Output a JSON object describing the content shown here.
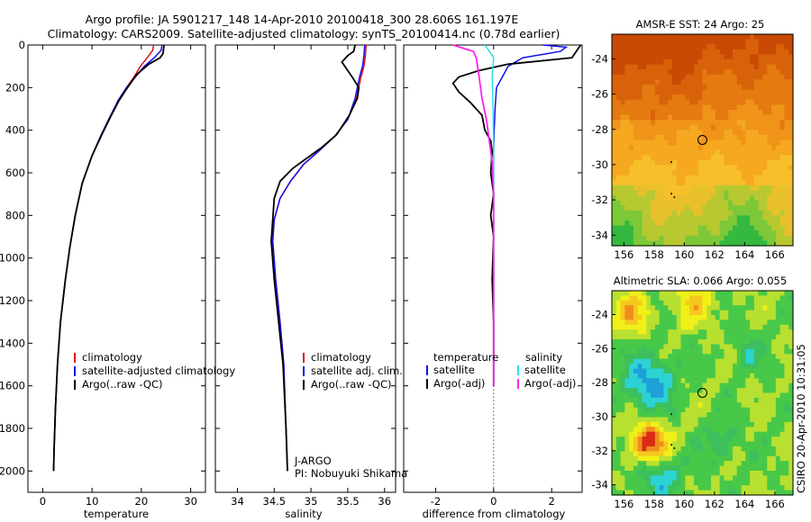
{
  "header": {
    "line1": "Argo profile: JA 5901217_148 14-Apr-2010 20100418_300 28.606S 161.197E",
    "line2": "Climatology: CARS2009. Satellite-adjusted climatology: synTS_20100414.nc (0.78d earlier)"
  },
  "side_label": "CSIRO 20-Apr-2010 10:31:05",
  "footer": {
    "agency": "J-ARGO",
    "pi": "PI: Nobuyuki Shikama"
  },
  "colors": {
    "climatology": "#dd1010",
    "satellite": "#1010ee",
    "argo": "#000000",
    "argo_salinity_diff": "#ff22ee",
    "satellite_salinity_diff": "#22e6e6"
  },
  "chart_data": [
    {
      "type": "line",
      "panel": "temperature",
      "xlabel": "temperature",
      "ylabel": "",
      "xlim": [
        -3,
        33
      ],
      "ylim": [
        2100,
        0
      ],
      "y_inverted": true,
      "xticks": [
        "0",
        "10",
        "20",
        "30"
      ],
      "yticks": [
        "0",
        "200",
        "400",
        "600",
        "800",
        "1000",
        "1200",
        "1400",
        "1600",
        "1800",
        "2000"
      ],
      "legend": [
        "climatology",
        "satellite-adjusted climatology",
        "Argo(..raw -QC)"
      ],
      "legend_position": "lower-right",
      "series": [
        {
          "name": "climatology",
          "x": [
            22.5,
            22.3,
            21.2,
            19.8,
            18.5,
            17.0,
            15.4,
            13.8,
            11.9,
            10.0,
            8.0,
            6.6,
            5.5,
            4.6,
            3.6,
            3.0,
            2.6,
            2.3,
            2.2
          ],
          "y": [
            0,
            25,
            60,
            100,
            150,
            200,
            260,
            330,
            420,
            520,
            650,
            800,
            950,
            1100,
            1300,
            1500,
            1700,
            1900,
            2000
          ]
        },
        {
          "name": "satellite-adjusted climatology",
          "x": [
            24.2,
            24.0,
            22.6,
            20.6,
            18.8,
            17.0,
            15.3,
            13.8,
            11.9,
            10.0,
            8.0,
            6.6,
            5.5,
            4.6,
            3.6,
            3.0,
            2.6,
            2.3,
            2.2
          ],
          "y": [
            0,
            25,
            60,
            100,
            150,
            200,
            260,
            330,
            420,
            520,
            650,
            800,
            950,
            1100,
            1300,
            1500,
            1700,
            1900,
            2000
          ]
        },
        {
          "name": "Argo(..raw -QC)",
          "x": [
            24.6,
            24.5,
            24.4,
            23.8,
            21.5,
            19.0,
            17.2,
            15.5,
            13.9,
            12.0,
            10.0,
            8.0,
            6.6,
            5.5,
            4.6,
            3.6,
            3.0,
            2.6,
            2.3,
            2.2
          ],
          "y": [
            0,
            20,
            40,
            60,
            90,
            140,
            200,
            260,
            330,
            420,
            520,
            650,
            800,
            950,
            1100,
            1300,
            1500,
            1700,
            1900,
            2000
          ]
        }
      ]
    },
    {
      "type": "line",
      "panel": "salinity",
      "xlabel": "salinity",
      "ylabel": "",
      "xlim": [
        33.7,
        36.15
      ],
      "ylim": [
        2100,
        0
      ],
      "y_inverted": true,
      "xticks": [
        "34",
        "34.5",
        "35",
        "35.5",
        "36"
      ],
      "legend": [
        "climatology",
        "satellite adj. clim.",
        "Argo(..raw -QC)"
      ],
      "legend_position": "lower-right",
      "series": [
        {
          "name": "climatology",
          "x": [
            35.75,
            35.74,
            35.72,
            35.68,
            35.62,
            35.5,
            35.32,
            35.1,
            34.9,
            34.72,
            34.58,
            34.5,
            34.48,
            34.52,
            34.58,
            34.63,
            34.66,
            34.68
          ],
          "y": [
            0,
            50,
            100,
            150,
            250,
            350,
            430,
            500,
            560,
            640,
            720,
            820,
            920,
            1100,
            1300,
            1500,
            1800,
            2000
          ]
        },
        {
          "name": "satellite adj. clim.",
          "x": [
            35.73,
            35.72,
            35.7,
            35.66,
            35.6,
            35.5,
            35.32,
            35.1,
            34.9,
            34.72,
            34.58,
            34.5,
            34.48,
            34.52,
            34.58,
            34.63,
            34.66,
            34.68
          ],
          "y": [
            0,
            50,
            100,
            150,
            250,
            350,
            430,
            500,
            560,
            640,
            720,
            820,
            920,
            1100,
            1300,
            1500,
            1800,
            2000
          ]
        },
        {
          "name": "Argo(..raw -QC)",
          "x": [
            35.6,
            35.58,
            35.5,
            35.42,
            35.5,
            35.56,
            35.65,
            35.63,
            35.52,
            35.35,
            35.15,
            34.95,
            34.75,
            34.58,
            34.5,
            34.48,
            34.46,
            34.5,
            34.56,
            34.62,
            34.66,
            34.68
          ],
          "y": [
            0,
            30,
            50,
            80,
            120,
            150,
            200,
            250,
            330,
            420,
            480,
            530,
            580,
            640,
            720,
            820,
            920,
            1100,
            1300,
            1500,
            1800,
            2000
          ]
        }
      ]
    },
    {
      "type": "line",
      "panel": "difference",
      "xlabel": "difference from climatology",
      "ylabel": "",
      "xlim": [
        -3.1,
        3.05
      ],
      "ylim": [
        2100,
        0
      ],
      "y_inverted": true,
      "xticks": [
        "-2",
        "0",
        "2"
      ],
      "legend": [
        "temperature",
        "satellite",
        "Argo(-adj)",
        "salinity",
        "satellite",
        "Argo(-adj)"
      ],
      "legend_position": "lower-center",
      "series": [
        {
          "name": "satellite",
          "group": "temperature",
          "x": [
            1.7,
            2.5,
            2.3,
            1.0,
            0.5,
            0.3,
            0.1,
            0.05,
            0.02,
            0.0,
            0.0,
            0.0,
            0.0
          ],
          "y": [
            0,
            10,
            30,
            60,
            100,
            150,
            200,
            300,
            400,
            500,
            700,
            1000,
            1600
          ]
        },
        {
          "name": "Argo(-adj)",
          "group": "temperature",
          "x": [
            3.0,
            2.7,
            0.5,
            -0.5,
            -1.2,
            -1.4,
            -1.2,
            -0.8,
            -0.4,
            -0.3,
            -0.1,
            -0.05,
            -0.1,
            0.0,
            -0.1,
            0.0,
            -0.05,
            0.0,
            0.0
          ],
          "y": [
            0,
            60,
            90,
            120,
            150,
            180,
            220,
            270,
            330,
            400,
            450,
            500,
            600,
            700,
            800,
            900,
            1100,
            1300,
            1600
          ]
        },
        {
          "name": "satellite",
          "group": "salinity",
          "x": [
            -0.3,
            -0.15,
            0.0,
            -0.05,
            -0.02,
            0.0,
            0.0,
            0.0,
            0.0
          ],
          "y": [
            0,
            30,
            60,
            150,
            300,
            500,
            800,
            1100,
            1600
          ]
        },
        {
          "name": "Argo(-adj)",
          "group": "salinity",
          "x": [
            -1.4,
            -0.7,
            -0.6,
            -0.5,
            -0.4,
            -0.25,
            -0.15,
            -0.05,
            0.0,
            0.0,
            0.0
          ],
          "y": [
            0,
            30,
            60,
            150,
            250,
            350,
            450,
            550,
            700,
            1000,
            1600
          ]
        }
      ]
    },
    {
      "type": "heatmap",
      "panel": "sst_map",
      "title": "AMSR-E SST: 24 Argo: 25",
      "xticks": [
        "156",
        "158",
        "160",
        "162",
        "164",
        "166"
      ],
      "yticks": [
        "-24",
        "-26",
        "-28",
        "-30",
        "-32",
        "-34"
      ],
      "xlim": [
        155.2,
        167.2
      ],
      "ylim": [
        -34.6,
        -22.6
      ],
      "marker": {
        "lon": 161.2,
        "lat": -28.6
      },
      "colors": [
        "#c84a04",
        "#d8620a",
        "#e47a10",
        "#ef9418",
        "#f5a820",
        "#f7bf2a",
        "#e8c02c",
        "#b8c830",
        "#7cc838",
        "#34b840"
      ]
    },
    {
      "type": "heatmap",
      "panel": "sla_map",
      "title": "Altimetric SLA: 0.066 Argo: 0.055",
      "xticks": [
        "156",
        "158",
        "160",
        "162",
        "164",
        "166"
      ],
      "yticks": [
        "-24",
        "-26",
        "-28",
        "-30",
        "-32",
        "-34"
      ],
      "xlim": [
        155.2,
        167.2
      ],
      "ylim": [
        -34.6,
        -22.6
      ],
      "marker": {
        "lon": 161.2,
        "lat": -28.6
      },
      "colors": [
        "#2a3a9a",
        "#1fa0d8",
        "#2cd2d4",
        "#3cbf5c",
        "#48c848",
        "#b8e030",
        "#f0f018",
        "#f5c820",
        "#f08c1c",
        "#d82a14",
        "#9a1410"
      ]
    }
  ]
}
